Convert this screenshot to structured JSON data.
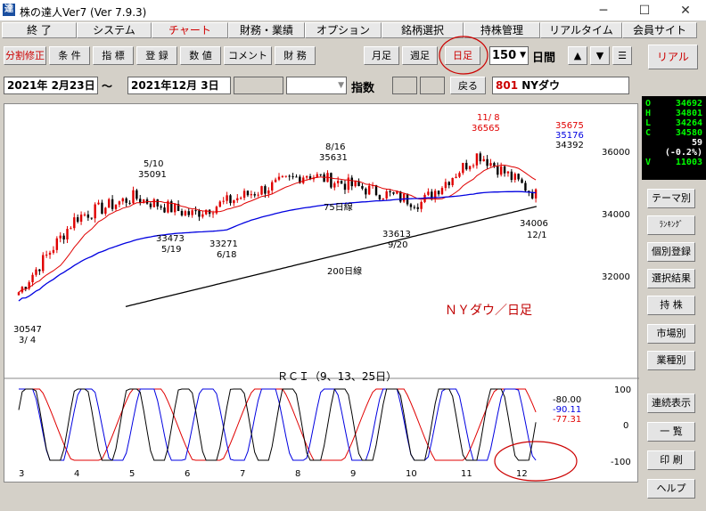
{
  "window": {
    "title": "株の達人Ver7 (Ver 7.9.3)",
    "icon_char": "達",
    "minimize": "─",
    "maximize": "☐",
    "close": "✕"
  },
  "menu": [
    "終 了",
    "システム",
    "チャート",
    "財務・業績",
    "オプション",
    "銘柄選択",
    "持株管理",
    "リアルタイム",
    "会員サイト"
  ],
  "toolbar": {
    "buttons": [
      "分割修正",
      "条 件",
      "指 標",
      "登 録",
      "数 値",
      "コメント",
      "財 務"
    ],
    "monthly": "月足",
    "weekly": "週足",
    "daily": "日足",
    "period": "150",
    "period_unit": "日間",
    "up": "▲",
    "down": "▼",
    "menu": "☰",
    "realtime": "リアル"
  },
  "info": {
    "start_date": "2021年 2月23日",
    "tilde": "〜",
    "end_date": "2021年12月 3日",
    "index_label": "指数",
    "back_button": "戻る",
    "code": "801",
    "name": "NYダウ"
  },
  "quote": [
    {
      "k": "O",
      "v": "34692"
    },
    {
      "k": "H",
      "v": "34801"
    },
    {
      "k": "L",
      "v": "34264"
    },
    {
      "k": "C",
      "v": "34580"
    },
    {
      "k": "",
      "v": "59"
    },
    {
      "k": "",
      "v": "(-0.2%)"
    },
    {
      "k": "V",
      "v": "11003"
    }
  ],
  "side_buttons": [
    "テーマ別",
    "ﾗﾝｷﾝｸﾞ",
    "個別登録",
    "選択結果",
    "持 株",
    "市場別",
    "業種別",
    "連続表示",
    "一 覧",
    "印 刷",
    "ヘルプ"
  ],
  "chart": {
    "title": "ＮＹダウ／日足",
    "ma_legend": [
      "35675",
      "35176",
      "34392"
    ],
    "y_ticks": [
      "36000",
      "34000",
      "32000"
    ],
    "annotations": [
      {
        "date": "3/ 4",
        "value": "30547"
      },
      {
        "date": "5/10",
        "value": "35091"
      },
      {
        "date": "5/19",
        "value": "33473"
      },
      {
        "date": "6/18",
        "value": "33271"
      },
      {
        "date": "8/16",
        "value": "35631"
      },
      {
        "date": "9/20",
        "value": "33613"
      },
      {
        "date": "11/ 8",
        "value": "36565"
      },
      {
        "date": "12/1",
        "value": "34006"
      }
    ],
    "ma75_label": "75日線",
    "ma200_label": "200日線",
    "rci_title": "ＲＣＩ（9、13、25日）",
    "rci_values": [
      "-80.00",
      "-90.11",
      "-77.31"
    ],
    "rci_ticks": [
      "100",
      "0",
      "-100"
    ],
    "months": [
      "3",
      "4",
      "5",
      "6",
      "7",
      "8",
      "9",
      "10",
      "11",
      "12"
    ]
  },
  "chart_data": {
    "type": "line",
    "x": [
      "3",
      "4",
      "5",
      "6",
      "7",
      "8",
      "9",
      "10",
      "11",
      "12"
    ],
    "series": [
      {
        "values": [
          31200,
          33800,
          34500,
          33900,
          34600,
          35300,
          34800,
          34300,
          36000,
          34580
        ]
      }
    ],
    "ylim": [
      30000,
      36800
    ]
  },
  "colors": {
    "red": "#e00000",
    "blue": "#0000e0",
    "black": "#000000"
  }
}
